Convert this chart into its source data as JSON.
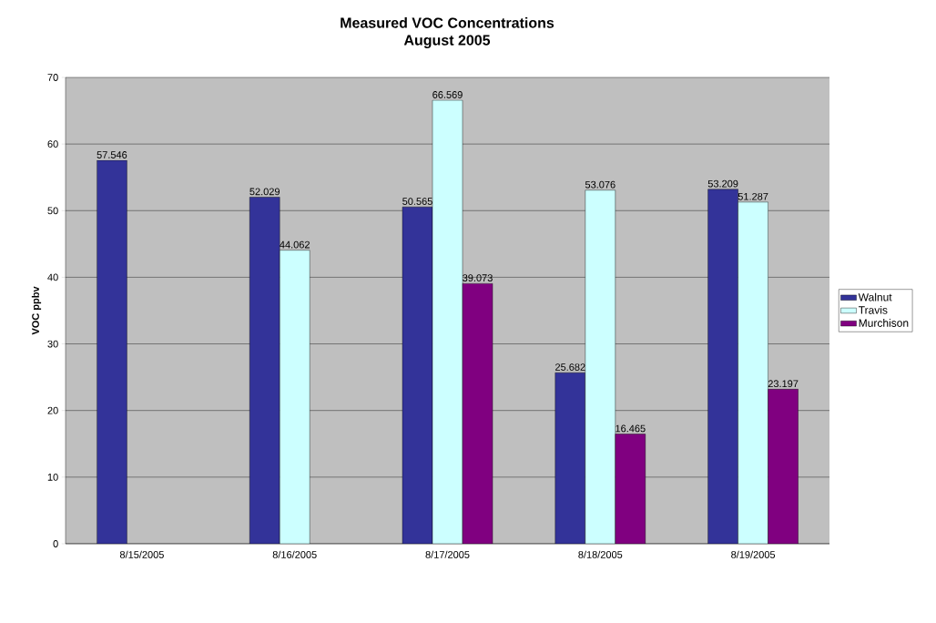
{
  "chart_data": {
    "type": "bar",
    "title": "Measured VOC Concentrations",
    "subtitle": "August 2005",
    "ylabel": "VOC ppbv",
    "categories": [
      "8/15/2005",
      "8/16/2005",
      "8/17/2005",
      "8/18/2005",
      "8/19/2005"
    ],
    "series": [
      {
        "name": "Walnut",
        "color": "#333399",
        "values": [
          57.546,
          52.029,
          50.565,
          25.682,
          53.209
        ]
      },
      {
        "name": "Travis",
        "color": "#ccffff",
        "values": [
          null,
          44.062,
          66.569,
          53.076,
          51.287
        ]
      },
      {
        "name": "Murchison",
        "color": "#800080",
        "values": [
          null,
          null,
          39.073,
          16.465,
          23.197
        ]
      }
    ],
    "ylim": [
      0,
      70
    ],
    "yticks": [
      0,
      10,
      20,
      30,
      40,
      50,
      60,
      70
    ],
    "grid": "y",
    "legend": "right",
    "data_labels": true
  }
}
